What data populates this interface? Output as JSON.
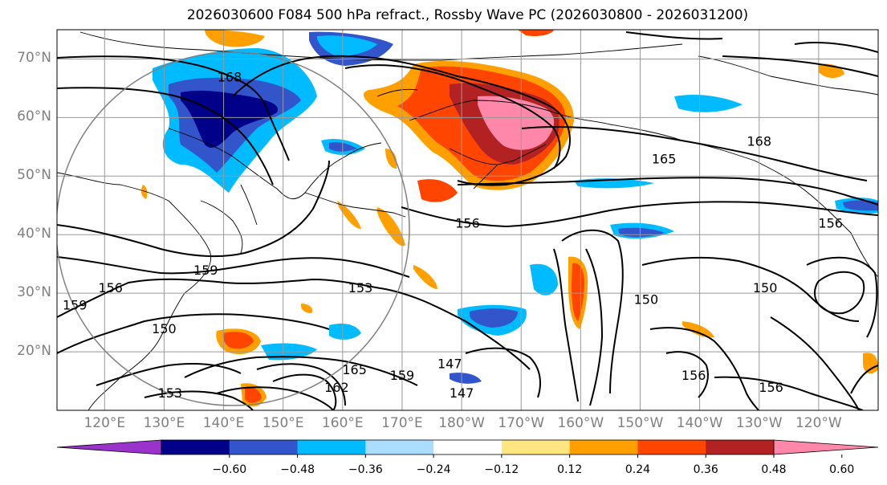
{
  "figure": {
    "title": "2026030600 F084 500 hPa refract., Rossby Wave PC (2026030800 - 2026031200)"
  },
  "map": {
    "projection": "cylindrical",
    "lon_range": [
      112,
      250
    ],
    "lat_range": [
      10,
      75
    ],
    "lat_ticks": [
      {
        "value": 70,
        "label": "70°N"
      },
      {
        "value": 60,
        "label": "60°N"
      },
      {
        "value": 50,
        "label": "50°N"
      },
      {
        "value": 40,
        "label": "40°N"
      },
      {
        "value": 30,
        "label": "30°N"
      },
      {
        "value": 20,
        "label": "20°N"
      }
    ],
    "lon_ticks": [
      {
        "value": 120,
        "label": "120°E"
      },
      {
        "value": 130,
        "label": "130°E"
      },
      {
        "value": 140,
        "label": "140°E"
      },
      {
        "value": 150,
        "label": "150°E"
      },
      {
        "value": 160,
        "label": "160°E"
      },
      {
        "value": 170,
        "label": "170°E"
      },
      {
        "value": 180,
        "label": "180°W"
      },
      {
        "value": 190,
        "label": "170°W"
      },
      {
        "value": 200,
        "label": "160°W"
      },
      {
        "value": 210,
        "label": "150°W"
      },
      {
        "value": 220,
        "label": "140°W"
      },
      {
        "value": 230,
        "label": "130°W"
      },
      {
        "value": 240,
        "label": "120°W"
      }
    ],
    "contour_labels": [
      {
        "text": "168",
        "lon": 141,
        "lat": 67
      },
      {
        "text": "168",
        "lon": 230,
        "lat": 56
      },
      {
        "text": "165",
        "lon": 214,
        "lat": 53
      },
      {
        "text": "156",
        "lon": 181,
        "lat": 42
      },
      {
        "text": "156",
        "lon": 242,
        "lat": 42
      },
      {
        "text": "159",
        "lon": 137,
        "lat": 34
      },
      {
        "text": "156",
        "lon": 121,
        "lat": 31
      },
      {
        "text": "153",
        "lon": 163,
        "lat": 31
      },
      {
        "text": "150",
        "lon": 231,
        "lat": 31
      },
      {
        "text": "159",
        "lon": 115,
        "lat": 28
      },
      {
        "text": "150",
        "lon": 130,
        "lat": 24
      },
      {
        "text": "147",
        "lon": 178,
        "lat": 18
      },
      {
        "text": "165",
        "lon": 162,
        "lat": 17
      },
      {
        "text": "162",
        "lon": 159,
        "lat": 14
      },
      {
        "text": "159",
        "lon": 170,
        "lat": 16
      },
      {
        "text": "153",
        "lon": 131,
        "lat": 13
      },
      {
        "text": "147",
        "lon": 180,
        "lat": 13
      },
      {
        "text": "156",
        "lon": 219,
        "lat": 16
      },
      {
        "text": "156",
        "lon": 232,
        "lat": 14
      },
      {
        "text": "150",
        "lon": 211,
        "lat": 29
      }
    ]
  },
  "colorbar": {
    "colors": [
      "#9933cc",
      "#000088",
      "#3355cc",
      "#00bbff",
      "#aaddff",
      "#ffffff",
      "#ffe680",
      "#ffa000",
      "#ff4500",
      "#b22222",
      "#ff88aa"
    ],
    "ticks": [
      "−0.60",
      "−0.48",
      "−0.36",
      "−0.24",
      "−0.12",
      "0.12",
      "0.24",
      "0.36",
      "0.48",
      "0.60"
    ]
  }
}
